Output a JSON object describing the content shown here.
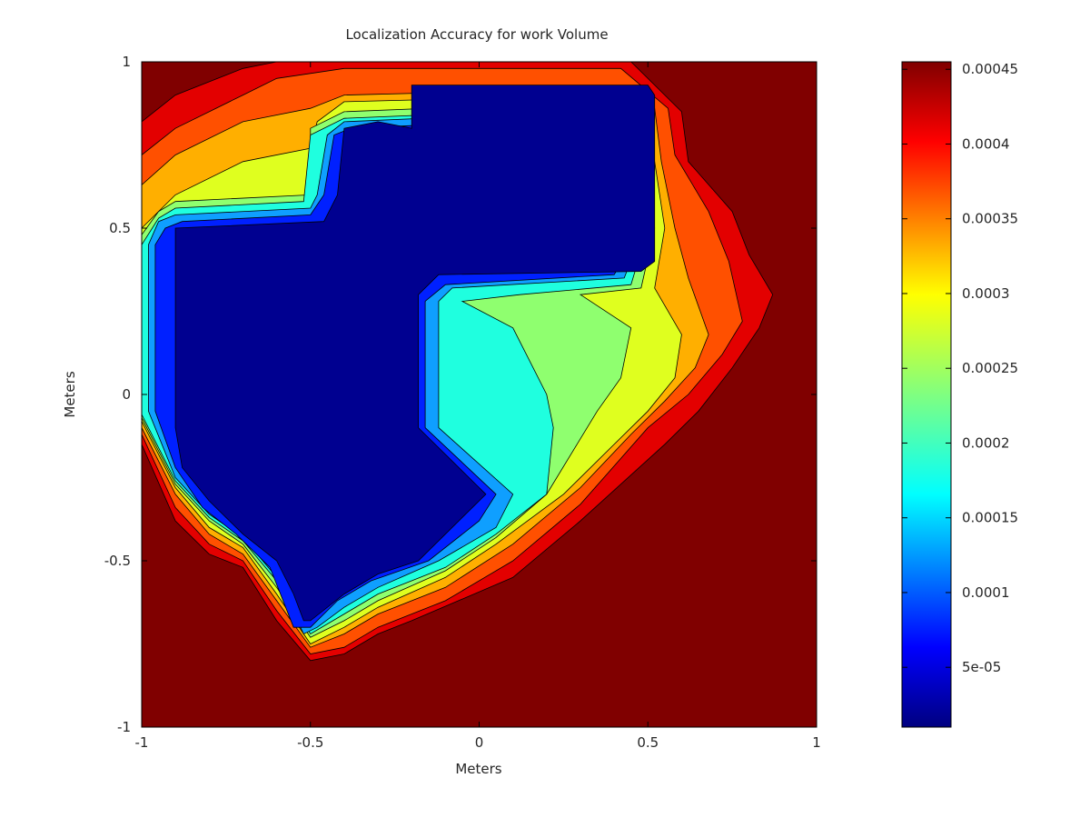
{
  "chart_data": {
    "type": "contour-filled",
    "title": "Localization Accuracy for work Volume",
    "xlabel": "Meters",
    "ylabel": "Meters",
    "xlim": [
      -1,
      1
    ],
    "ylim": [
      -1,
      1
    ],
    "xticks": [
      -1,
      -0.5,
      0,
      0.5,
      1
    ],
    "yticks": [
      -1,
      -0.5,
      0,
      0.5,
      1
    ],
    "xtick_labels": [
      "-1",
      "-0.5",
      "0",
      "0.5",
      "1"
    ],
    "ytick_labels": [
      "-1",
      "-0.5",
      "0",
      "0.5",
      "1"
    ],
    "colorbar": {
      "colormap": "jet",
      "range": [
        1e-05,
        0.000455
      ],
      "ticks": [
        5e-05,
        0.0001,
        0.00015,
        0.0002,
        0.00025,
        0.0003,
        0.00035,
        0.0004,
        0.00045
      ],
      "tick_labels": [
        "5e-05",
        "0.0001",
        "0.00015",
        "0.0002",
        "0.00025",
        "0.0003",
        "0.00035",
        "0.0004",
        "0.00045"
      ]
    },
    "background_level": 0.00045,
    "regions": [
      {
        "name": "level-0.00042",
        "color": "#e30000",
        "points": [
          [
            -1,
            0.82
          ],
          [
            -0.9,
            0.9
          ],
          [
            -0.7,
            0.98
          ],
          [
            -0.6,
            1.0
          ],
          [
            0.45,
            1.0
          ],
          [
            0.6,
            0.85
          ],
          [
            0.62,
            0.7
          ],
          [
            0.75,
            0.55
          ],
          [
            0.8,
            0.42
          ],
          [
            0.87,
            0.3
          ],
          [
            0.83,
            0.2
          ],
          [
            0.75,
            0.08
          ],
          [
            0.65,
            -0.05
          ],
          [
            0.55,
            -0.15
          ],
          [
            0.3,
            -0.38
          ],
          [
            0.1,
            -0.55
          ],
          [
            -0.2,
            -0.68
          ],
          [
            -0.3,
            -0.72
          ],
          [
            -0.4,
            -0.78
          ],
          [
            -0.5,
            -0.8
          ],
          [
            -0.6,
            -0.68
          ],
          [
            -0.7,
            -0.52
          ],
          [
            -0.8,
            -0.48
          ],
          [
            -0.9,
            -0.38
          ],
          [
            -1,
            -0.15
          ]
        ]
      },
      {
        "name": "level-0.00037",
        "color": "#ff5000",
        "points": [
          [
            -1,
            0.72
          ],
          [
            -0.9,
            0.8
          ],
          [
            -0.7,
            0.9
          ],
          [
            -0.6,
            0.95
          ],
          [
            -0.4,
            0.98
          ],
          [
            0.42,
            0.98
          ],
          [
            0.56,
            0.86
          ],
          [
            0.58,
            0.72
          ],
          [
            0.68,
            0.55
          ],
          [
            0.74,
            0.4
          ],
          [
            0.78,
            0.22
          ],
          [
            0.72,
            0.12
          ],
          [
            0.62,
            0.0
          ],
          [
            0.5,
            -0.1
          ],
          [
            0.3,
            -0.33
          ],
          [
            0.1,
            -0.5
          ],
          [
            -0.1,
            -0.62
          ],
          [
            -0.3,
            -0.7
          ],
          [
            -0.4,
            -0.76
          ],
          [
            -0.5,
            -0.78
          ],
          [
            -0.6,
            -0.65
          ],
          [
            -0.7,
            -0.5
          ],
          [
            -0.8,
            -0.45
          ],
          [
            -0.9,
            -0.34
          ],
          [
            -1,
            -0.12
          ]
        ]
      },
      {
        "name": "level-0.00032",
        "color": "#ffaf00",
        "points": [
          [
            -1,
            0.63
          ],
          [
            -0.9,
            0.72
          ],
          [
            -0.7,
            0.82
          ],
          [
            -0.5,
            0.86
          ],
          [
            -0.4,
            0.9
          ],
          [
            0.4,
            0.92
          ],
          [
            0.52,
            0.86
          ],
          [
            0.54,
            0.7
          ],
          [
            0.58,
            0.5
          ],
          [
            0.62,
            0.35
          ],
          [
            0.68,
            0.18
          ],
          [
            0.64,
            0.08
          ],
          [
            0.55,
            -0.02
          ],
          [
            0.45,
            -0.12
          ],
          [
            0.3,
            -0.28
          ],
          [
            0.1,
            -0.45
          ],
          [
            -0.1,
            -0.58
          ],
          [
            -0.3,
            -0.66
          ],
          [
            -0.4,
            -0.72
          ],
          [
            -0.5,
            -0.76
          ],
          [
            -0.6,
            -0.62
          ],
          [
            -0.7,
            -0.48
          ],
          [
            -0.8,
            -0.42
          ],
          [
            -0.9,
            -0.3
          ],
          [
            -1,
            -0.1
          ]
        ]
      },
      {
        "name": "level-0.00027",
        "color": "#dfff1f",
        "points": [
          [
            -1,
            0.5
          ],
          [
            -0.9,
            0.6
          ],
          [
            -0.7,
            0.7
          ],
          [
            -0.5,
            0.74
          ],
          [
            -0.48,
            0.82
          ],
          [
            -0.4,
            0.88
          ],
          [
            0.38,
            0.9
          ],
          [
            0.5,
            0.84
          ],
          [
            0.52,
            0.7
          ],
          [
            0.55,
            0.5
          ],
          [
            0.52,
            0.32
          ],
          [
            0.6,
            0.18
          ],
          [
            0.58,
            0.05
          ],
          [
            0.5,
            -0.05
          ],
          [
            0.4,
            -0.15
          ],
          [
            0.25,
            -0.3
          ],
          [
            0.05,
            -0.45
          ],
          [
            -0.1,
            -0.55
          ],
          [
            -0.3,
            -0.64
          ],
          [
            -0.4,
            -0.7
          ],
          [
            -0.5,
            -0.75
          ],
          [
            -0.6,
            -0.6
          ],
          [
            -0.7,
            -0.46
          ],
          [
            -0.8,
            -0.4
          ],
          [
            -0.9,
            -0.28
          ],
          [
            -1,
            -0.08
          ]
        ]
      },
      {
        "name": "level-0.00022",
        "color": "#8fff6f",
        "points": [
          [
            -1,
            0.48
          ],
          [
            -0.95,
            0.55
          ],
          [
            -0.9,
            0.58
          ],
          [
            -0.5,
            0.6
          ],
          [
            -0.5,
            0.8
          ],
          [
            -0.4,
            0.85
          ],
          [
            0.35,
            0.88
          ],
          [
            0.48,
            0.82
          ],
          [
            0.5,
            0.68
          ],
          [
            0.52,
            0.5
          ],
          [
            0.48,
            0.32
          ],
          [
            0.3,
            0.3
          ],
          [
            0.45,
            0.2
          ],
          [
            0.42,
            0.05
          ],
          [
            0.35,
            -0.05
          ],
          [
            0.2,
            -0.3
          ],
          [
            0.05,
            -0.43
          ],
          [
            -0.1,
            -0.53
          ],
          [
            -0.3,
            -0.62
          ],
          [
            -0.4,
            -0.68
          ],
          [
            -0.5,
            -0.73
          ],
          [
            -0.6,
            -0.58
          ],
          [
            -0.7,
            -0.45
          ],
          [
            -0.8,
            -0.38
          ],
          [
            -0.9,
            -0.27
          ],
          [
            -1,
            -0.07
          ]
        ]
      },
      {
        "name": "level-0.00017",
        "color": "#1fffdf",
        "points": [
          [
            -1,
            0.45
          ],
          [
            -0.95,
            0.53
          ],
          [
            -0.9,
            0.56
          ],
          [
            -0.52,
            0.58
          ],
          [
            -0.5,
            0.78
          ],
          [
            -0.4,
            0.83
          ],
          [
            0.32,
            0.86
          ],
          [
            0.46,
            0.8
          ],
          [
            0.48,
            0.66
          ],
          [
            0.5,
            0.5
          ],
          [
            0.45,
            0.33
          ],
          [
            0.12,
            0.3
          ],
          [
            -0.05,
            0.28
          ],
          [
            0.1,
            0.2
          ],
          [
            0.2,
            0.0
          ],
          [
            0.22,
            -0.1
          ],
          [
            0.2,
            -0.3
          ],
          [
            0.05,
            -0.42
          ],
          [
            -0.1,
            -0.52
          ],
          [
            -0.3,
            -0.6
          ],
          [
            -0.4,
            -0.66
          ],
          [
            -0.5,
            -0.72
          ],
          [
            -0.6,
            -0.56
          ],
          [
            -0.7,
            -0.44
          ],
          [
            -0.8,
            -0.37
          ],
          [
            -0.9,
            -0.26
          ],
          [
            -1,
            -0.06
          ]
        ]
      },
      {
        "name": "level-0.00012",
        "color": "#0f9fff",
        "points": [
          [
            -0.98,
            0.45
          ],
          [
            -0.95,
            0.52
          ],
          [
            -0.9,
            0.54
          ],
          [
            -0.5,
            0.56
          ],
          [
            -0.48,
            0.6
          ],
          [
            -0.45,
            0.78
          ],
          [
            -0.4,
            0.82
          ],
          [
            0.3,
            0.85
          ],
          [
            0.45,
            0.78
          ],
          [
            0.47,
            0.64
          ],
          [
            0.48,
            0.48
          ],
          [
            0.43,
            0.35
          ],
          [
            -0.08,
            0.32
          ],
          [
            -0.12,
            0.28
          ],
          [
            -0.12,
            -0.1
          ],
          [
            0.1,
            -0.3
          ],
          [
            0.05,
            -0.4
          ],
          [
            -0.12,
            -0.5
          ],
          [
            -0.3,
            -0.58
          ],
          [
            -0.4,
            -0.64
          ],
          [
            -0.48,
            -0.7
          ],
          [
            -0.52,
            -0.72
          ],
          [
            -0.6,
            -0.55
          ],
          [
            -0.7,
            -0.43
          ],
          [
            -0.8,
            -0.36
          ],
          [
            -0.9,
            -0.25
          ],
          [
            -0.98,
            -0.05
          ]
        ]
      },
      {
        "name": "level-0.00007",
        "color": "#0020ff",
        "points": [
          [
            -0.96,
            0.45
          ],
          [
            -0.93,
            0.5
          ],
          [
            -0.88,
            0.52
          ],
          [
            -0.5,
            0.54
          ],
          [
            -0.46,
            0.6
          ],
          [
            -0.43,
            0.78
          ],
          [
            -0.38,
            0.8
          ],
          [
            0.28,
            0.83
          ],
          [
            0.43,
            0.76
          ],
          [
            0.45,
            0.62
          ],
          [
            0.46,
            0.46
          ],
          [
            0.4,
            0.36
          ],
          [
            -0.1,
            0.33
          ],
          [
            -0.16,
            0.28
          ],
          [
            -0.16,
            -0.1
          ],
          [
            0.05,
            -0.3
          ],
          [
            0.0,
            -0.38
          ],
          [
            -0.15,
            -0.5
          ],
          [
            -0.32,
            -0.56
          ],
          [
            -0.42,
            -0.62
          ],
          [
            -0.5,
            -0.7
          ],
          [
            -0.55,
            -0.7
          ],
          [
            -0.62,
            -0.52
          ],
          [
            -0.72,
            -0.42
          ],
          [
            -0.82,
            -0.34
          ],
          [
            -0.9,
            -0.22
          ],
          [
            -0.96,
            -0.05
          ]
        ]
      },
      {
        "name": "level-0.00002",
        "color": "#000090",
        "points": [
          [
            -0.9,
            0.5
          ],
          [
            -0.46,
            0.52
          ],
          [
            -0.42,
            0.6
          ],
          [
            -0.4,
            0.8
          ],
          [
            -0.3,
            0.82
          ],
          [
            -0.2,
            0.8
          ],
          [
            -0.2,
            0.93
          ],
          [
            0.5,
            0.93
          ],
          [
            0.52,
            0.9
          ],
          [
            0.52,
            0.4
          ],
          [
            0.48,
            0.37
          ],
          [
            -0.12,
            0.36
          ],
          [
            -0.18,
            0.3
          ],
          [
            -0.18,
            -0.1
          ],
          [
            0.0,
            -0.28
          ],
          [
            0.02,
            -0.3
          ],
          [
            -0.18,
            -0.5
          ],
          [
            -0.3,
            -0.54
          ],
          [
            -0.4,
            -0.6
          ],
          [
            -0.5,
            -0.68
          ],
          [
            -0.52,
            -0.68
          ],
          [
            -0.55,
            -0.6
          ],
          [
            -0.6,
            -0.5
          ],
          [
            -0.7,
            -0.42
          ],
          [
            -0.8,
            -0.32
          ],
          [
            -0.88,
            -0.22
          ],
          [
            -0.9,
            -0.1
          ]
        ]
      }
    ]
  }
}
